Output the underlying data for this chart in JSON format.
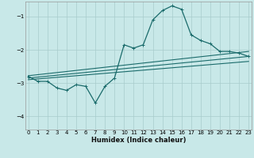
{
  "xlabel": "Humidex (Indice chaleur)",
  "bg_color": "#c8e8e8",
  "grid_color": "#a8cccc",
  "line_color": "#1a6b6b",
  "xlim": [
    -0.3,
    23.3
  ],
  "ylim": [
    -4.4,
    -0.55
  ],
  "yticks": [
    -4,
    -3,
    -2,
    -1
  ],
  "xticks": [
    0,
    1,
    2,
    3,
    4,
    5,
    6,
    7,
    8,
    9,
    10,
    11,
    12,
    13,
    14,
    15,
    16,
    17,
    18,
    19,
    20,
    21,
    22,
    23
  ],
  "line1_x": [
    0,
    1,
    2,
    3,
    4,
    5,
    6,
    7,
    8,
    9,
    10,
    11,
    12,
    13,
    14,
    15,
    16,
    17,
    18,
    19,
    20,
    21,
    22,
    23
  ],
  "line1_y": [
    -2.8,
    -2.95,
    -2.95,
    -3.15,
    -3.22,
    -3.05,
    -3.1,
    -3.6,
    -3.1,
    -2.85,
    -1.85,
    -1.95,
    -1.85,
    -1.1,
    -0.82,
    -0.68,
    -0.78,
    -1.55,
    -1.72,
    -1.82,
    -2.05,
    -2.05,
    -2.1,
    -2.2
  ],
  "line2_x": [
    0,
    23
  ],
  "line2_y": [
    -2.78,
    -2.05
  ],
  "line3_x": [
    0,
    23
  ],
  "line3_y": [
    -2.85,
    -2.2
  ],
  "line4_x": [
    0,
    23
  ],
  "line4_y": [
    -2.9,
    -2.35
  ]
}
